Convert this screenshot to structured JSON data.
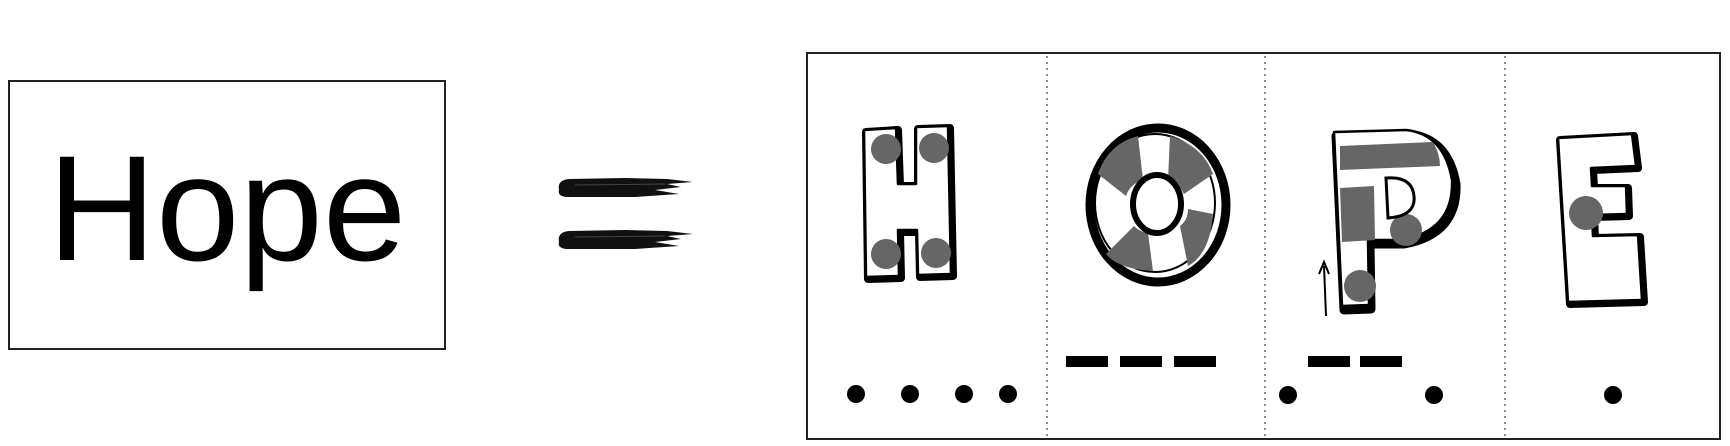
{
  "word": {
    "text": "Hope"
  },
  "equals_sign": {
    "icon": "brush-equals-icon"
  },
  "morse_panel": {
    "cells": [
      {
        "letter": "H",
        "code": "....",
        "icon": "letter-h-icon"
      },
      {
        "letter": "O",
        "code": "---",
        "icon": "letter-o-icon"
      },
      {
        "letter": "P",
        "code": ".--.",
        "icon": "letter-p-icon"
      },
      {
        "letter": "E",
        "code": ".",
        "icon": "letter-e-icon"
      }
    ],
    "colors": {
      "outline": "#000000",
      "fill": "#ffffff",
      "spot": "#666666"
    }
  }
}
